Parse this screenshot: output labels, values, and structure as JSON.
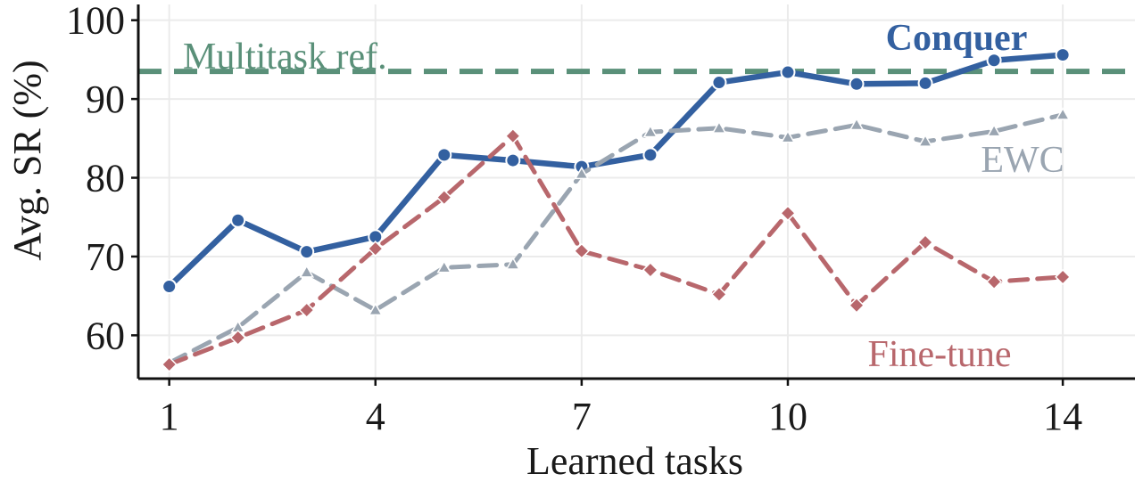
{
  "chart_data": {
    "type": "line",
    "title": "",
    "xlabel": "Learned tasks",
    "ylabel": "Avg. SR (%)",
    "xlim": [
      0.55,
      15.05
    ],
    "ylim": [
      54.5,
      102
    ],
    "xticks": [
      1,
      4,
      7,
      10,
      14
    ],
    "yticks": [
      60,
      70,
      80,
      90,
      100
    ],
    "grid": true,
    "legend": "inline labels",
    "x": [
      1,
      2,
      3,
      4,
      5,
      6,
      7,
      8,
      9,
      10,
      11,
      12,
      13,
      14
    ],
    "series": [
      {
        "name": "Conquer",
        "color": "#3360a0",
        "style": "solid",
        "marker": "circle",
        "label_bold": true,
        "values": [
          66.2,
          74.6,
          70.6,
          72.5,
          82.9,
          82.2,
          81.4,
          82.9,
          92.1,
          93.4,
          91.9,
          92.0,
          94.9,
          95.6
        ]
      },
      {
        "name": "EWC",
        "color": "#9aa5b1",
        "style": "dashed",
        "marker": "triangle",
        "label_bold": false,
        "values": [
          56.5,
          61.0,
          68.0,
          63.2,
          68.6,
          69.0,
          80.5,
          85.8,
          86.3,
          85.1,
          86.7,
          84.6,
          85.9,
          88.0
        ]
      },
      {
        "name": "Fine-tune",
        "color": "#b8676c",
        "style": "dashed",
        "marker": "diamond",
        "label_bold": false,
        "values": [
          56.3,
          59.7,
          63.2,
          71.0,
          77.5,
          85.3,
          70.7,
          68.3,
          65.2,
          75.5,
          63.8,
          71.8,
          66.8,
          67.4
        ]
      }
    ],
    "reference": {
      "name": "Multitask ref.",
      "value": 93.5,
      "color": "#5a9079",
      "style": "dashed"
    }
  }
}
